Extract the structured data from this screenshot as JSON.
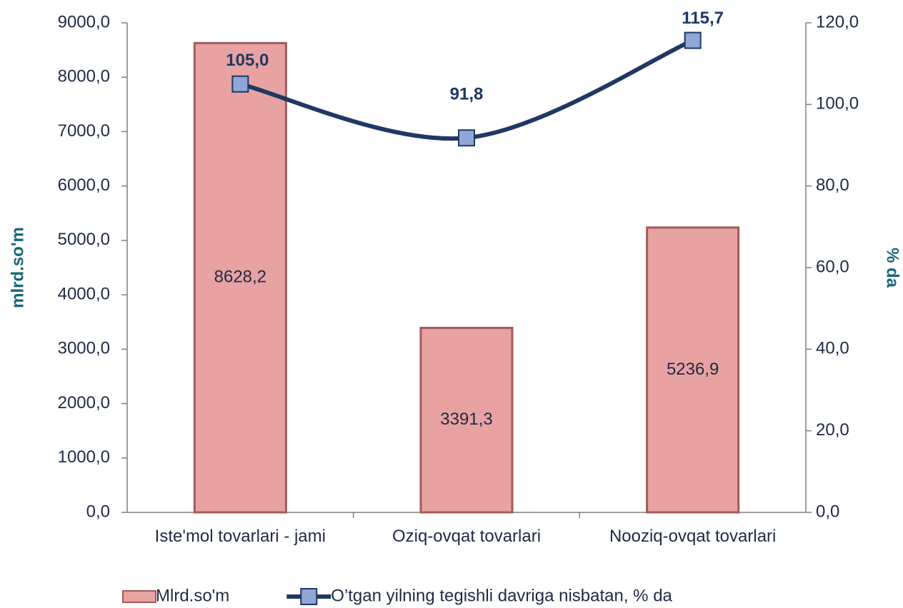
{
  "chart_data": {
    "type": "combo",
    "categories": [
      "Iste'mol tovarlari - jami",
      "Oziq-ovqat tovarlari",
      "Nooziq-ovqat tovarlari"
    ],
    "series": [
      {
        "name": "Mlrd.so'm",
        "type": "bar",
        "color": "#e8a2a2",
        "values": [
          8628.2,
          3391.3,
          5236.9
        ],
        "value_labels": [
          "8628,2",
          "3391,3",
          "5236,9"
        ]
      },
      {
        "name": "O’tgan yilning tegishli davriga nisbatan, % da",
        "type": "line",
        "axis": "y2",
        "color": "#1f3864",
        "values": [
          105.0,
          91.8,
          115.7
        ],
        "value_labels": [
          "105,0",
          "91,8",
          "115,7"
        ]
      }
    ],
    "ylabel": "mlrd.so'm",
    "y2label": "% da",
    "ylim": [
      0,
      9000
    ],
    "yticks": [
      {
        "value": 0,
        "label": "0,0"
      },
      {
        "value": 1000,
        "label": "1000,0"
      },
      {
        "value": 2000,
        "label": "2000,0"
      },
      {
        "value": 3000,
        "label": "3000,0"
      },
      {
        "value": 4000,
        "label": "4000,0"
      },
      {
        "value": 5000,
        "label": "5000,0"
      },
      {
        "value": 6000,
        "label": "6000,0"
      },
      {
        "value": 7000,
        "label": "7000,0"
      },
      {
        "value": 8000,
        "label": "8000,0"
      },
      {
        "value": 9000,
        "label": "9000,0"
      }
    ],
    "y2lim": [
      0,
      120
    ],
    "y2ticks": [
      {
        "value": 0,
        "label": "0,0"
      },
      {
        "value": 20,
        "label": "20,0"
      },
      {
        "value": 40,
        "label": "40,0"
      },
      {
        "value": 60,
        "label": "60,0"
      },
      {
        "value": 80,
        "label": "80,0"
      },
      {
        "value": 100,
        "label": "100,0"
      },
      {
        "value": 120,
        "label": "120,0"
      }
    ],
    "legend": "bottom"
  }
}
